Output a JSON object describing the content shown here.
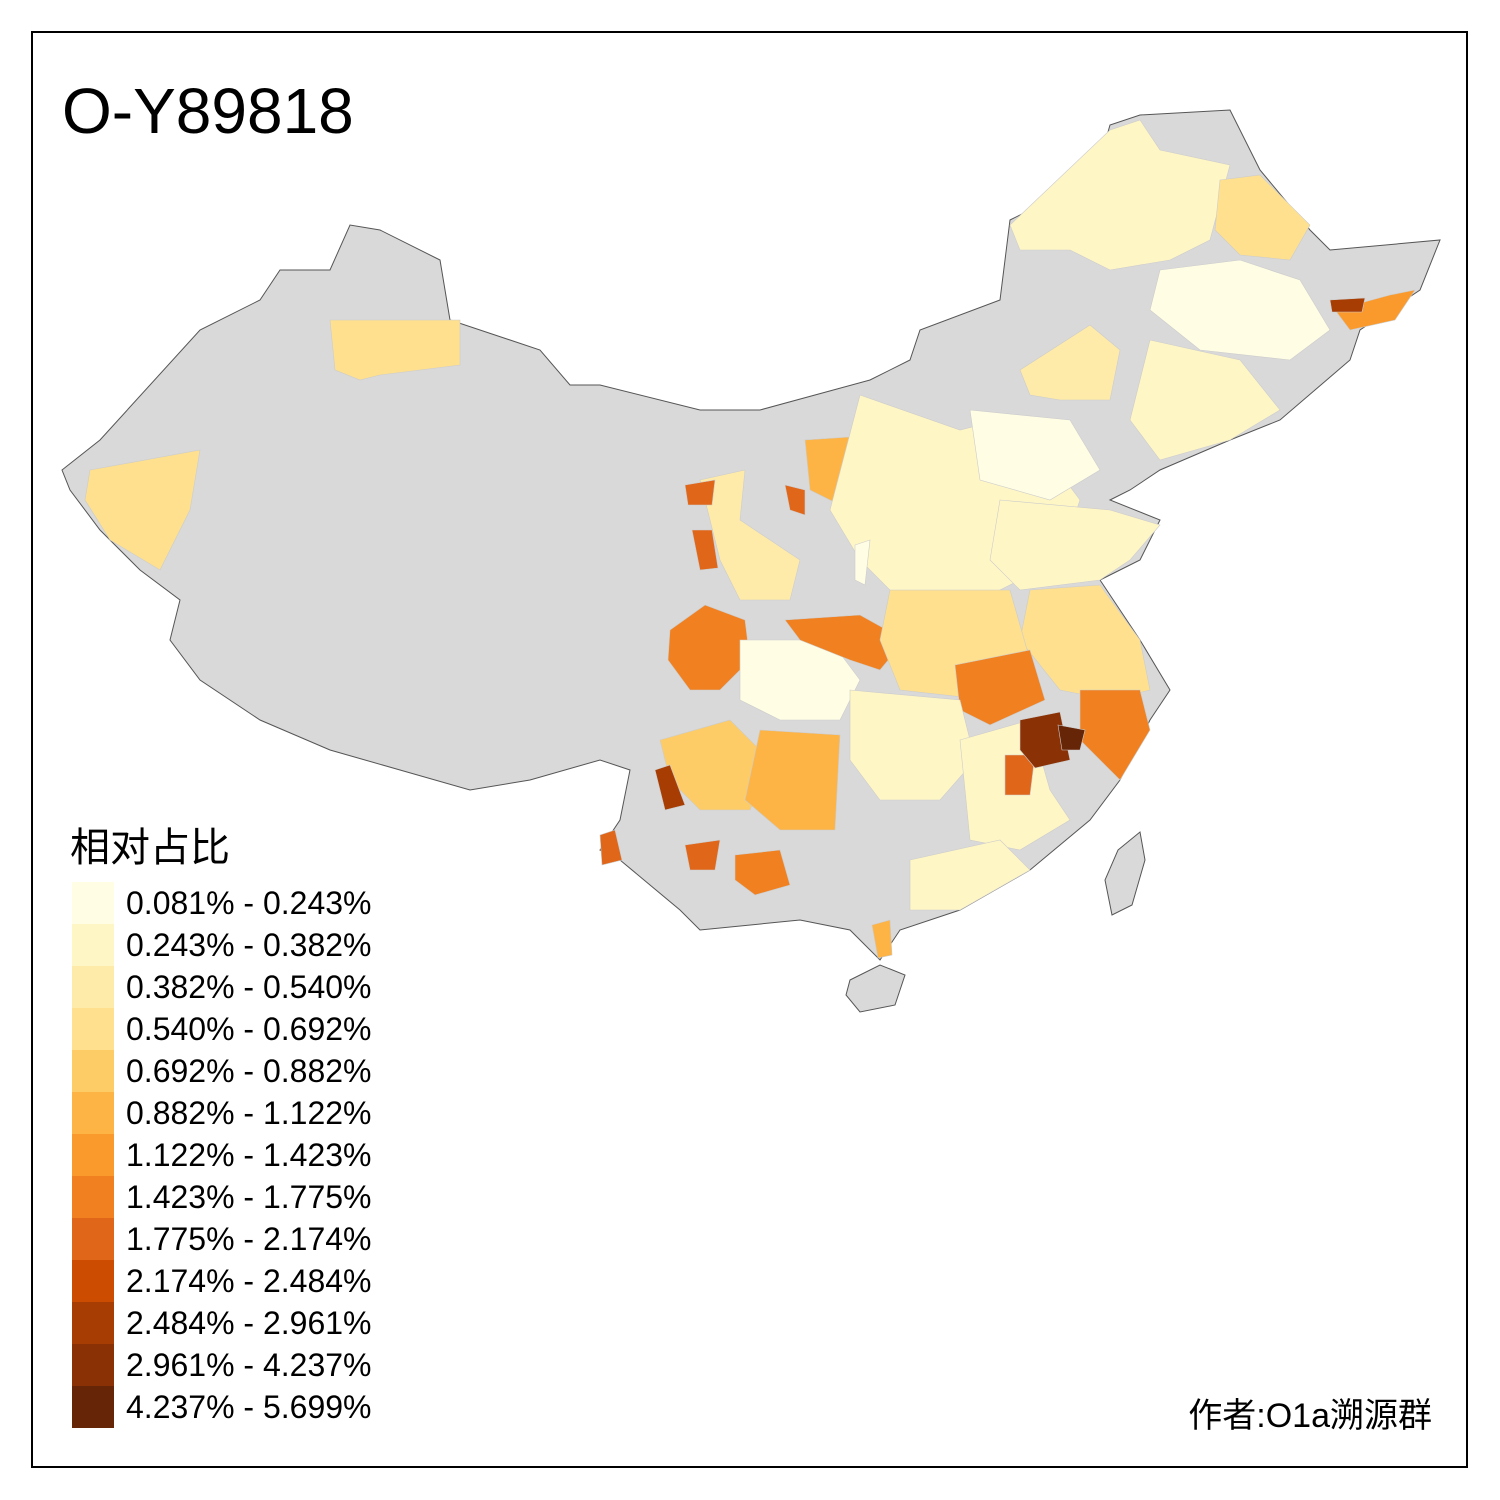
{
  "title": "O-Y89818",
  "legend": {
    "title": "相对占比",
    "items": [
      {
        "label": "0.081% - 0.243%",
        "color": "#FFFDE4"
      },
      {
        "label": "0.243% - 0.382%",
        "color": "#FFF6C6"
      },
      {
        "label": "0.382% - 0.540%",
        "color": "#FEEBAA"
      },
      {
        "label": "0.540% - 0.692%",
        "color": "#FEE08E"
      },
      {
        "label": "0.692% - 0.882%",
        "color": "#FECC66"
      },
      {
        "label": "0.882% - 1.122%",
        "color": "#FDB445"
      },
      {
        "label": "1.122% - 1.423%",
        "color": "#FB9A2C"
      },
      {
        "label": "1.423% - 1.775%",
        "color": "#F08020"
      },
      {
        "label": "1.775% - 2.174%",
        "color": "#E0661A"
      },
      {
        "label": "2.174% - 2.484%",
        "color": "#CC4C02"
      },
      {
        "label": "2.484% - 2.961%",
        "color": "#A83D04"
      },
      {
        "label": "2.961% - 4.237%",
        "color": "#8A3105"
      },
      {
        "label": "4.237% - 5.699%",
        "color": "#662506"
      }
    ]
  },
  "no_data_color": "#D9D9D9",
  "credit": "作者:O1a溯源群"
}
